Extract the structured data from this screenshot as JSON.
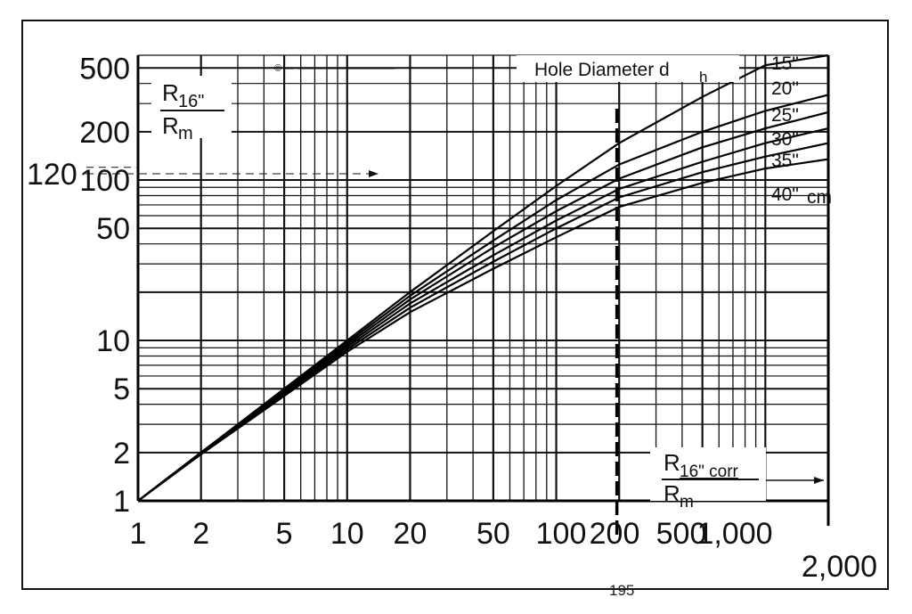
{
  "chart_data": {
    "type": "line",
    "title": "",
    "x_scale": "log",
    "y_scale": "log",
    "grid": true,
    "xlim": [
      1,
      2000
    ],
    "ylim": [
      1,
      600
    ],
    "x_tick_labels": [
      "1",
      "2",
      "5",
      "10",
      "20",
      "50",
      "100",
      "200",
      "500",
      "1,000",
      "2,000"
    ],
    "y_tick_labels": [
      "1",
      "2",
      "5",
      "10",
      "50",
      "100",
      "200",
      "500"
    ],
    "ylabel": {
      "main": "R",
      "sub": "16\"",
      "denom": "R",
      "denom_sub": "m"
    },
    "xlabel": {
      "main": "R",
      "sub": "16\" corr",
      "denom": "R",
      "denom_sub": "m"
    },
    "legend_title": {
      "main": "Hole Diameter d",
      "sub": "h"
    },
    "unit_label": "cm",
    "annotations": {
      "y_marker": "120",
      "x_marker": "195",
      "watermark": "© — ——————————"
    },
    "series": [
      {
        "name": "15\"",
        "x": [
          1,
          2,
          5,
          10,
          20,
          50,
          100,
          200,
          500,
          1000,
          2000
        ],
        "y": [
          1,
          2,
          5,
          10,
          20,
          48,
          92,
          170,
          330,
          520,
          700
        ]
      },
      {
        "name": "20\"",
        "x": [
          1,
          2,
          5,
          10,
          20,
          50,
          100,
          200,
          500,
          1000,
          2000
        ],
        "y": [
          1,
          2,
          4.9,
          9.7,
          19,
          42,
          75,
          125,
          200,
          270,
          340
        ]
      },
      {
        "name": "25\"",
        "x": [
          1,
          2,
          5,
          10,
          20,
          50,
          100,
          200,
          500,
          1000,
          2000
        ],
        "y": [
          1,
          2,
          4.8,
          9.4,
          18,
          38,
          64,
          102,
          160,
          210,
          265
        ]
      },
      {
        "name": "30\"",
        "x": [
          1,
          2,
          5,
          10,
          20,
          50,
          100,
          200,
          500,
          1000,
          2000
        ],
        "y": [
          1,
          2,
          4.7,
          9.1,
          17,
          34,
          56,
          88,
          130,
          170,
          210
        ]
      },
      {
        "name": "35\"",
        "x": [
          1,
          2,
          5,
          10,
          20,
          50,
          100,
          200,
          500,
          1000,
          2000
        ],
        "y": [
          1,
          2,
          4.6,
          8.8,
          16,
          31,
          50,
          78,
          112,
          140,
          170
        ]
      },
      {
        "name": "40\"",
        "x": [
          1,
          2,
          5,
          10,
          20,
          50,
          100,
          200,
          500,
          1000,
          2000
        ],
        "y": [
          1,
          1.95,
          4.5,
          8.5,
          15,
          28,
          44,
          68,
          96,
          118,
          135
        ]
      }
    ]
  }
}
